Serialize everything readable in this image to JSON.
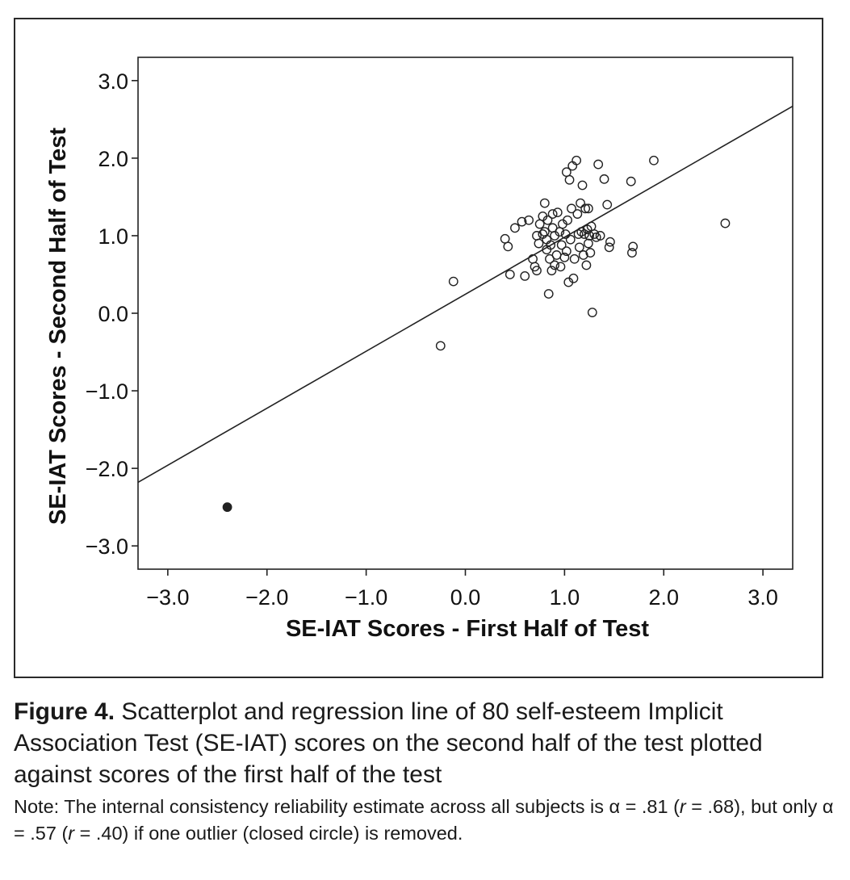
{
  "caption": {
    "label": "Figure 4.",
    "text": " Scatterplot and regression line of 80 self-esteem Implicit Association Test (SE-IAT) scores on the second half of the test plotted against scores of the first half of the test",
    "note_parts": [
      {
        "text": "Note: The internal consistency reliability estimate across all subjects is α = .81 (",
        "italic": false
      },
      {
        "text": "r",
        "italic": true
      },
      {
        "text": " = .68), but only α = .57 (",
        "italic": false
      },
      {
        "text": "r",
        "italic": true
      },
      {
        "text": " = .40) if one outlier (closed circle) is removed.",
        "italic": false
      }
    ]
  },
  "chart_data": {
    "type": "scatter",
    "title": "",
    "xlabel": "SE-IAT Scores - First Half of Test",
    "ylabel": "SE-IAT Scores - Second Half of Test",
    "xlim": [
      -3.3,
      3.3
    ],
    "ylim": [
      -3.3,
      3.3
    ],
    "x_ticks": [
      -3.0,
      -2.0,
      -1.0,
      0.0,
      1.0,
      2.0,
      3.0
    ],
    "x_tick_labels": [
      "−3.0",
      "−2.0",
      "−1.0",
      "0.0",
      "1.0",
      "2.0",
      "3.0"
    ],
    "y_ticks": [
      3.0,
      2.0,
      1.0,
      0.0,
      -1.0,
      -2.0,
      -3.0
    ],
    "y_tick_labels": [
      "3.0",
      "2.0",
      "1.0",
      "0.0",
      "−1.0",
      "−2.0",
      "−3.0"
    ],
    "grid": false,
    "regression_line": {
      "x": [
        -3.3,
        3.3
      ],
      "y": [
        -2.18,
        2.67
      ]
    },
    "colors": {
      "marker": "#222222",
      "line": "#222222",
      "axis": "#222222"
    },
    "series": [
      {
        "marker": "open-circle",
        "points": [
          [
            -0.25,
            -0.42
          ],
          [
            -0.12,
            0.41
          ],
          [
            0.4,
            0.96
          ],
          [
            0.43,
            0.86
          ],
          [
            0.45,
            0.5
          ],
          [
            0.5,
            1.1
          ],
          [
            0.57,
            1.18
          ],
          [
            0.6,
            0.48
          ],
          [
            0.64,
            1.2
          ],
          [
            0.68,
            0.7
          ],
          [
            0.7,
            0.6
          ],
          [
            0.72,
            0.55
          ],
          [
            0.72,
            1.0
          ],
          [
            0.74,
            0.9
          ],
          [
            0.75,
            1.15
          ],
          [
            0.78,
            1.25
          ],
          [
            0.8,
            1.05
          ],
          [
            0.8,
            1.42
          ],
          [
            0.82,
            0.82
          ],
          [
            0.82,
            0.95
          ],
          [
            0.83,
            1.2
          ],
          [
            0.84,
            0.25
          ],
          [
            0.85,
            0.7
          ],
          [
            0.86,
            0.88
          ],
          [
            0.87,
            0.55
          ],
          [
            0.88,
            1.1
          ],
          [
            0.9,
            0.62
          ],
          [
            0.9,
            1.0
          ],
          [
            0.92,
            0.75
          ],
          [
            0.93,
            1.3
          ],
          [
            0.95,
            1.05
          ],
          [
            0.96,
            0.6
          ],
          [
            0.97,
            0.88
          ],
          [
            0.98,
            1.15
          ],
          [
            1.0,
            0.72
          ],
          [
            1.01,
            1.02
          ],
          [
            1.02,
            1.82
          ],
          [
            1.03,
            1.2
          ],
          [
            1.04,
            0.4
          ],
          [
            1.05,
            1.72
          ],
          [
            1.06,
            0.95
          ],
          [
            1.07,
            1.35
          ],
          [
            1.08,
            1.9
          ],
          [
            1.09,
            0.45
          ],
          [
            1.1,
            0.7
          ],
          [
            1.12,
            1.97
          ],
          [
            1.13,
            1.28
          ],
          [
            1.15,
            0.85
          ],
          [
            1.16,
            1.42
          ],
          [
            1.17,
            1.05
          ],
          [
            1.18,
            1.65
          ],
          [
            1.19,
            0.75
          ],
          [
            1.2,
            1.02
          ],
          [
            1.21,
            1.35
          ],
          [
            1.22,
            0.62
          ],
          [
            1.23,
            1.08
          ],
          [
            1.24,
            0.9
          ],
          [
            1.25,
            1.0
          ],
          [
            1.26,
            0.78
          ],
          [
            1.27,
            1.12
          ],
          [
            1.28,
            0.01
          ],
          [
            1.3,
            1.02
          ],
          [
            1.32,
            0.98
          ],
          [
            1.34,
            1.92
          ],
          [
            1.36,
            1.0
          ],
          [
            1.4,
            1.73
          ],
          [
            1.43,
            1.4
          ],
          [
            1.45,
            0.85
          ],
          [
            1.46,
            0.92
          ],
          [
            1.67,
            1.7
          ],
          [
            1.68,
            0.78
          ],
          [
            1.69,
            0.86
          ],
          [
            1.9,
            1.97
          ],
          [
            2.62,
            1.16
          ],
          [
            0.78,
            1.02
          ],
          [
            0.88,
            1.28
          ],
          [
            1.14,
            1.02
          ],
          [
            1.02,
            0.8
          ],
          [
            1.24,
            1.35
          ]
        ]
      },
      {
        "marker": "closed-circle",
        "points": [
          [
            -2.4,
            -2.5
          ]
        ]
      }
    ]
  }
}
